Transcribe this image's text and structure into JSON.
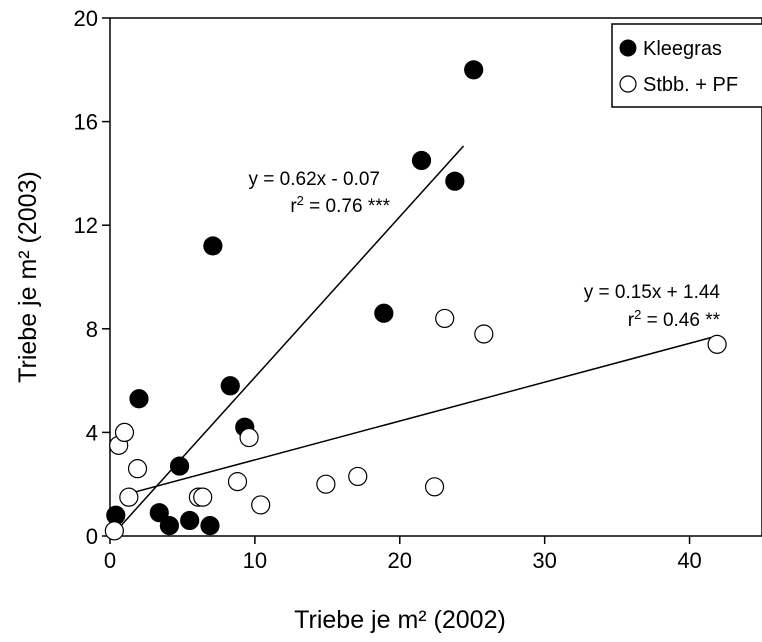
{
  "chart_data": {
    "type": "scatter",
    "xlabel": "Triebe je m² (2002)",
    "ylabel": "Triebe je m² (2003)",
    "xlim": [
      0,
      45
    ],
    "ylim": [
      0,
      20
    ],
    "xticks": [
      "0",
      "10",
      "20",
      "30",
      "40"
    ],
    "yticks": [
      "0",
      "4",
      "8",
      "12",
      "16",
      "20"
    ],
    "legend_position": "top-right",
    "series": [
      {
        "name": "Kleegras",
        "marker": "filled-circle",
        "color": "#000000",
        "points": [
          [
            0.4,
            0.8
          ],
          [
            2.0,
            5.3
          ],
          [
            3.4,
            0.9
          ],
          [
            4.1,
            0.4
          ],
          [
            4.8,
            2.7
          ],
          [
            5.5,
            0.6
          ],
          [
            6.9,
            0.4
          ],
          [
            7.1,
            11.2
          ],
          [
            8.3,
            5.8
          ],
          [
            9.3,
            4.2
          ],
          [
            18.9,
            8.6
          ],
          [
            21.5,
            14.5
          ],
          [
            23.8,
            13.7
          ],
          [
            25.1,
            18.0
          ]
        ],
        "fit": {
          "slope": 0.62,
          "intercept": -0.07,
          "x_range": [
            0.4,
            24.4
          ],
          "equation": "y = 0.62x - 0.07",
          "r2_prefix": "r",
          "r2_value": " = 0.76 ***"
        }
      },
      {
        "name": "Stbb. + PF",
        "marker": "open-circle",
        "color": "#000000",
        "points": [
          [
            0.3,
            0.2
          ],
          [
            0.6,
            3.5
          ],
          [
            1.0,
            4.0
          ],
          [
            1.3,
            1.5
          ],
          [
            1.9,
            2.6
          ],
          [
            6.1,
            1.5
          ],
          [
            6.4,
            1.5
          ],
          [
            8.8,
            2.1
          ],
          [
            9.6,
            3.8
          ],
          [
            10.4,
            1.2
          ],
          [
            14.9,
            2.0
          ],
          [
            17.1,
            2.3
          ],
          [
            22.4,
            1.9
          ],
          [
            23.1,
            8.4
          ],
          [
            25.8,
            7.8
          ],
          [
            41.9,
            7.4
          ]
        ],
        "fit": {
          "slope": 0.15,
          "intercept": 1.44,
          "x_range": [
            1.0,
            41.5
          ],
          "equation": "y = 0.15x + 1.44",
          "r2_prefix": "r",
          "r2_value": " = 0.46 **"
        }
      }
    ]
  }
}
